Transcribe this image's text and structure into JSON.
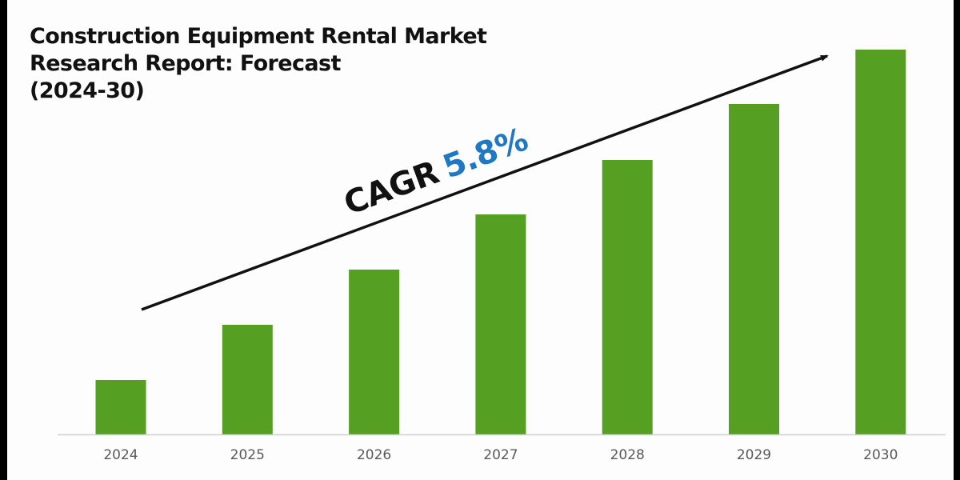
{
  "title": "Construction Equipment Rental Market\nResearch Report: Forecast\n(2024-30)",
  "annotation": {
    "label": "CAGR",
    "value": "5.8%"
  },
  "colors": {
    "bar": "#55a023",
    "cagr_value": "#1f78c1",
    "axis_line": "#d0d0d0",
    "tick_label": "#595959",
    "border": "#000000"
  },
  "chart_data": {
    "type": "bar",
    "title": "Construction Equipment Rental Market Research Report: Forecast (2024-30)",
    "categories": [
      "2024",
      "2025",
      "2026",
      "2027",
      "2028",
      "2029",
      "2030"
    ],
    "values": [
      68,
      137,
      206,
      275,
      343,
      413,
      481
    ],
    "values_note": "relative bar heights (no y-axis or data labels shown)",
    "xlabel": "",
    "ylabel": "",
    "ylim": [
      0,
      500
    ],
    "grid": false,
    "legend": null,
    "annotations": [
      {
        "text": "CAGR 5.8%",
        "type": "trend-arrow",
        "from": "2024",
        "to": "2030"
      }
    ]
  }
}
